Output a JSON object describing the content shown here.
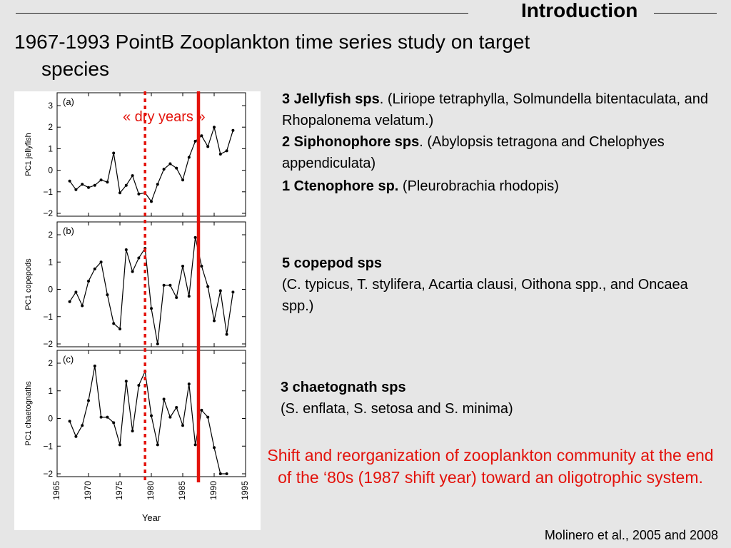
{
  "header": {
    "section_title": "Introduction"
  },
  "title": {
    "line1": "1967-1993 PointB Zooplankton time series study on target",
    "line2": "species"
  },
  "annotations": {
    "dry_years": "« dry years »"
  },
  "groups": {
    "jellyfish": {
      "bold": "3 Jellyfish sps",
      "text": ". (Liriope tetraphylla, Solmundella bitentaculata, and Rhopalonema velatum.)"
    },
    "siphonophore": {
      "bold": "2 Siphonophore sps",
      "text": ". (Abylopsis tetragona and Chelophyes appendiculata)"
    },
    "ctenophore": {
      "bold": "1 Ctenophore sp.",
      "text": " (Pleurobrachia rhodopis)"
    },
    "copepod": {
      "bold": "5 copepod sps",
      "text": "(C. typicus, T. stylifera, Acartia clausi, Oithona spp., and Oncaea spp.)"
    },
    "chaetognath": {
      "bold": "3 chaetognath sps",
      "text": "(S. enflata, S. setosa and S. minima)"
    }
  },
  "conclusion": "Shift and reorganization of zooplankton community at the end of the ‘80s (1987 shift year) toward an oligotrophic system.",
  "citation": "Molinero et al., 2005 and 2008",
  "colors": {
    "accent_red": "#e3120b",
    "series_line": "#000000"
  },
  "chart_data": {
    "type": "line",
    "xlabel": "Year",
    "xlim": [
      1965,
      1995
    ],
    "xticks": [
      "1965",
      "1970",
      "1975",
      "1980",
      "1985",
      "1990",
      "1995"
    ],
    "x": [
      1967,
      1968,
      1969,
      1970,
      1971,
      1972,
      1973,
      1974,
      1975,
      1976,
      1977,
      1978,
      1979,
      1980,
      1981,
      1982,
      1983,
      1984,
      1985,
      1986,
      1987,
      1988,
      1989,
      1990,
      1991,
      1992,
      1993
    ],
    "vertical_markers": [
      {
        "x": 1979,
        "style": "dotted",
        "color": "#e3120b"
      },
      {
        "x": 1987.5,
        "style": "solid",
        "color": "#e3120b"
      }
    ],
    "panels": [
      {
        "label": "(a)",
        "ylabel": "PC1 jellyfish",
        "ylim": [
          -2,
          3
        ],
        "yticks": [
          "3",
          "2",
          "1",
          "0",
          "−1",
          "−2"
        ],
        "values": [
          -0.5,
          -0.9,
          -0.65,
          -0.8,
          -0.7,
          -0.45,
          -0.55,
          0.8,
          -1.05,
          -0.7,
          -0.25,
          -1.1,
          -1.05,
          -1.45,
          -0.65,
          0.05,
          0.3,
          0.1,
          -0.45,
          0.6,
          1.35,
          1.6,
          1.1,
          2.0,
          0.75,
          0.9,
          1.85
        ]
      },
      {
        "label": "(b)",
        "ylabel": "PC1 copepods",
        "ylim": [
          -2,
          2
        ],
        "yticks": [
          "2",
          "1",
          "0",
          "−1",
          "−2"
        ],
        "values": [
          -0.45,
          -0.1,
          -0.6,
          0.3,
          0.75,
          1.0,
          -0.2,
          -1.25,
          -1.45,
          1.45,
          0.65,
          1.15,
          1.5,
          -0.7,
          -2.0,
          0.15,
          0.15,
          -0.3,
          0.85,
          -0.25,
          1.9,
          0.85,
          0.1,
          -1.15,
          -0.05,
          -1.65,
          -0.1
        ]
      },
      {
        "label": "(c)",
        "ylabel": "PC1 chaetognaths",
        "ylim": [
          -2,
          2
        ],
        "yticks": [
          "2",
          "1",
          "0",
          "−1",
          "−2"
        ],
        "values": [
          -0.1,
          -0.65,
          -0.25,
          0.65,
          1.9,
          0.05,
          0.05,
          -0.15,
          -0.95,
          1.35,
          -0.45,
          1.2,
          1.7,
          0.1,
          -0.95,
          0.7,
          0.05,
          0.4,
          -0.25,
          1.25,
          -0.95,
          0.3,
          0.05,
          -1.05,
          -2.0,
          -2.0,
          null
        ]
      }
    ]
  }
}
